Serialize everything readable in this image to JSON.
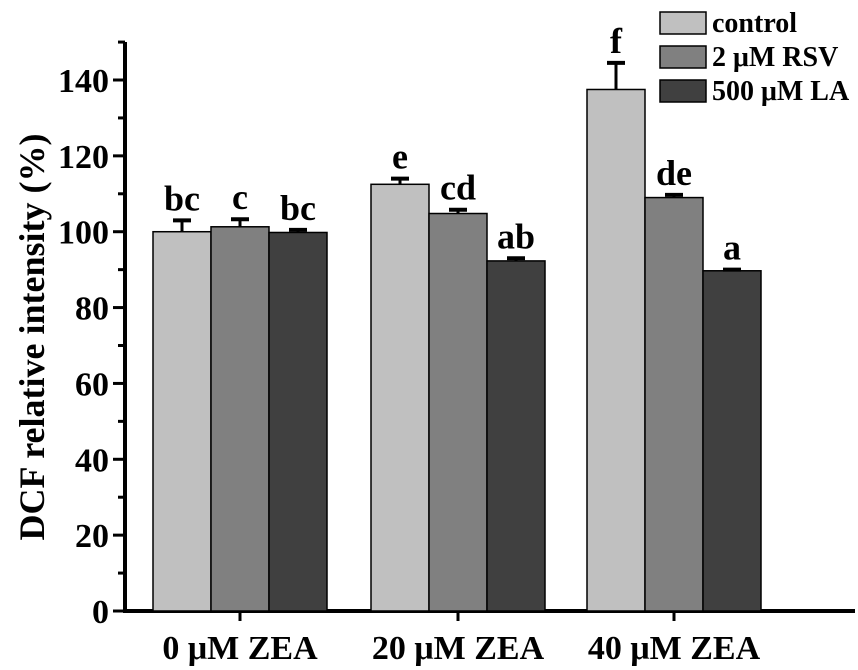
{
  "chart_data": {
    "type": "bar",
    "ylabel": "DCF relative intensity (%)",
    "xlabel": "",
    "ylim": [
      0,
      150
    ],
    "yticks": [
      0,
      20,
      40,
      60,
      80,
      100,
      120,
      140
    ],
    "categories": [
      "0 μM ZEA",
      "20 μM ZEA",
      "40 μM ZEA"
    ],
    "series": [
      {
        "name": "control",
        "color": "#c0c0c0",
        "values": [
          100,
          112.5,
          137.5
        ],
        "errors": [
          3,
          1.5,
          7
        ],
        "sig": [
          "bc",
          "e",
          "f"
        ]
      },
      {
        "name": "2 μM RSV",
        "color": "#808080",
        "values": [
          101.3,
          104.8,
          109
        ],
        "errors": [
          2,
          1,
          0.7
        ],
        "sig": [
          "c",
          "cd",
          "de"
        ]
      },
      {
        "name": "500 μM LA",
        "color": "#404040",
        "values": [
          99.8,
          92.3,
          89.7
        ],
        "errors": [
          0.7,
          0.7,
          0.3
        ],
        "sig": [
          "bc",
          "ab",
          "a"
        ]
      }
    ],
    "legend_position": "top-right",
    "grid": false
  }
}
